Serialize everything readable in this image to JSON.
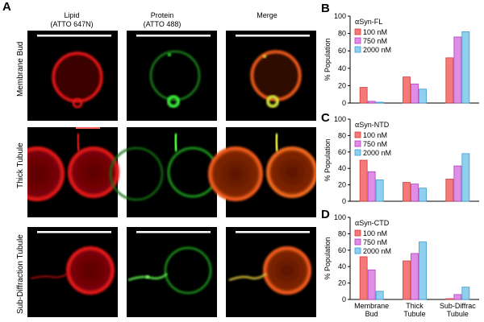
{
  "figure": {
    "panel_labels": {
      "a": "A",
      "b": "B",
      "c": "C",
      "d": "D"
    },
    "columns": [
      {
        "line1": "Lipid",
        "line2": "(ATTO 647N)"
      },
      {
        "line1": "Protein",
        "line2": "(ATTO 488)"
      },
      {
        "line1": "Merge",
        "line2": ""
      }
    ],
    "rows": [
      "Membrane Bud",
      "Thick Tubule",
      "Sub-Diffraction Tubule"
    ]
  },
  "colors": {
    "c100": "#f47a7a",
    "c750": "#df8ee6",
    "c2000": "#8fd0ee"
  },
  "chart_data": [
    {
      "type": "bar",
      "title": "αSyn-FL",
      "ylabel": "% Population",
      "ylim": [
        0,
        100
      ],
      "yticks": [
        0,
        20,
        40,
        60,
        80,
        100
      ],
      "categories": [
        "Membrane Bud",
        "Thick Tubule",
        "Sub-Diffraction Tubule"
      ],
      "series": [
        {
          "name": "100 nM",
          "values": [
            18,
            30,
            52
          ]
        },
        {
          "name": "750 nM",
          "values": [
            2,
            22,
            76
          ]
        },
        {
          "name": "2000 nM",
          "values": [
            1,
            16,
            82
          ]
        }
      ],
      "legend": "top-left"
    },
    {
      "type": "bar",
      "title": "αSyn-NTD",
      "ylabel": "% Population",
      "ylim": [
        0,
        100
      ],
      "yticks": [
        0,
        20,
        40,
        60,
        80,
        100
      ],
      "categories": [
        "Membrane Bud",
        "Thick Tubule",
        "Sub-Diffraction Tubule"
      ],
      "series": [
        {
          "name": "100 nM",
          "values": [
            50,
            23,
            27
          ]
        },
        {
          "name": "750 nM",
          "values": [
            36,
            21,
            43
          ]
        },
        {
          "name": "2000 nM",
          "values": [
            26,
            16,
            58
          ]
        }
      ],
      "legend": "top-left"
    },
    {
      "type": "bar",
      "title": "αSyn-CTD",
      "ylabel": "% Population",
      "ylim": [
        0,
        100
      ],
      "yticks": [
        0,
        20,
        40,
        60,
        80,
        100
      ],
      "categories": [
        "Membrane Bud",
        "Thick Tubule",
        "Sub-Diffraction Tubule"
      ],
      "xticklabels": [
        [
          "Membrane",
          "Bud"
        ],
        [
          "Thick",
          "Tubule"
        ],
        [
          "Sub-Diffrac",
          "Tubule"
        ]
      ],
      "series": [
        {
          "name": "100 nM",
          "values": [
            52,
            47,
            1
          ]
        },
        {
          "name": "750 nM",
          "values": [
            36,
            56,
            6
          ]
        },
        {
          "name": "2000 nM",
          "values": [
            10,
            70,
            15
          ]
        }
      ],
      "legend": "top-left"
    }
  ]
}
